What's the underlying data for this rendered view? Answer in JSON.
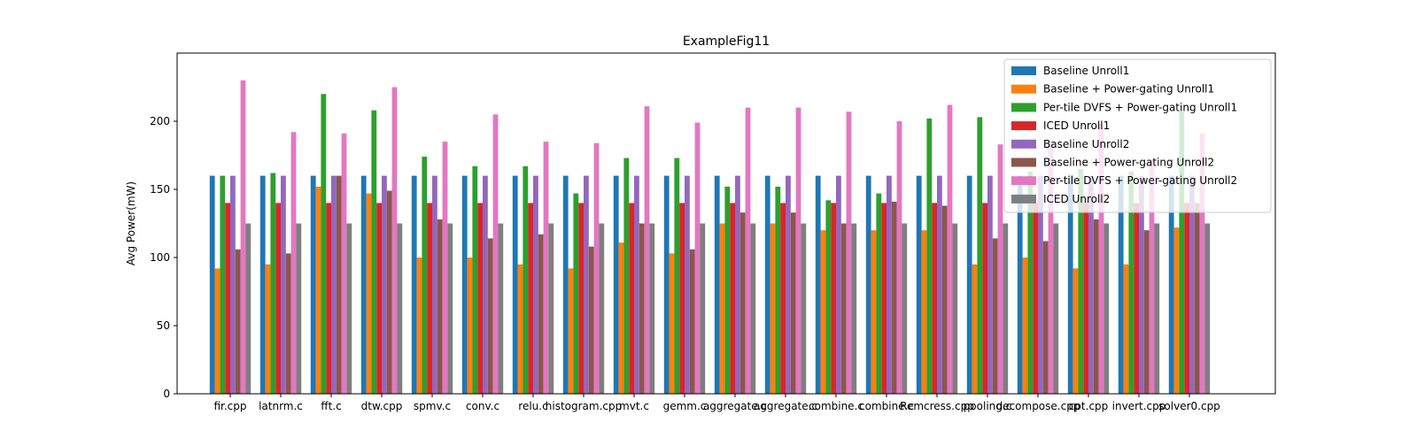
{
  "chart_data": {
    "type": "bar",
    "title": "ExampleFig11",
    "xlabel": "",
    "ylabel": "Avg Power(mW)",
    "ylim": [
      0,
      250
    ],
    "yticks": [
      0,
      50,
      100,
      150,
      200
    ],
    "grid": false,
    "legend_position": "top-right",
    "categories": [
      "fir.cpp",
      "latnrm.c",
      "fft.c",
      "dtw.cpp",
      "spmv.c",
      "conv.c",
      "relu.c",
      "histogram.cpp",
      "mvt.c",
      "gemm.c",
      "aggregate.c",
      "aggregate.c",
      "combine.c",
      "combine.c",
      "Remcress.cpp",
      "pooling.c",
      "decompose.cpp",
      "cpt.cpp",
      "invert.cpp",
      "solver0.cpp"
    ],
    "series": [
      {
        "name": "Baseline Unroll1",
        "color": "#1f77b4",
        "values": [
          160,
          160,
          160,
          160,
          160,
          160,
          160,
          160,
          160,
          160,
          160,
          160,
          160,
          160,
          160,
          160,
          160,
          160,
          160,
          160
        ]
      },
      {
        "name": "Baseline + Power-gating Unroll1",
        "color": "#ff7f0e",
        "values": [
          92,
          95,
          152,
          147,
          100,
          100,
          95,
          92,
          111,
          103,
          125,
          125,
          120,
          120,
          120,
          95,
          100,
          92,
          95,
          122
        ]
      },
      {
        "name": "Per-tile DVFS + Power-gating Unroll1",
        "color": "#2ca02c",
        "values": [
          160,
          162,
          220,
          208,
          174,
          167,
          167,
          147,
          173,
          173,
          152,
          152,
          142,
          147,
          202,
          203,
          163,
          165,
          163,
          207
        ]
      },
      {
        "name": "ICED Unroll1",
        "color": "#d62728",
        "values": [
          140,
          140,
          140,
          140,
          140,
          140,
          140,
          140,
          140,
          140,
          140,
          140,
          140,
          140,
          140,
          140,
          140,
          140,
          140,
          140
        ]
      },
      {
        "name": "Baseline Unroll2",
        "color": "#9467bd",
        "values": [
          160,
          160,
          160,
          160,
          160,
          160,
          160,
          160,
          160,
          160,
          160,
          160,
          160,
          160,
          160,
          160,
          160,
          160,
          160,
          160
        ]
      },
      {
        "name": "Baseline + Power-gating Unroll2",
        "color": "#8c564b",
        "values": [
          106,
          103,
          160,
          149,
          128,
          114,
          117,
          108,
          125,
          106,
          133,
          133,
          125,
          141,
          138,
          114,
          112,
          128,
          120,
          140
        ]
      },
      {
        "name": "Per-tile DVFS + Power-gating Unroll2",
        "color": "#e377c2",
        "values": [
          230,
          192,
          191,
          225,
          185,
          205,
          185,
          184,
          211,
          199,
          210,
          210,
          207,
          200,
          212,
          183,
          185,
          198,
          172,
          191
        ]
      },
      {
        "name": "ICED Unroll2",
        "color": "#7f7f7f",
        "values": [
          125,
          125,
          125,
          125,
          125,
          125,
          125,
          125,
          125,
          125,
          125,
          125,
          125,
          125,
          125,
          125,
          125,
          125,
          125,
          125
        ]
      }
    ]
  }
}
